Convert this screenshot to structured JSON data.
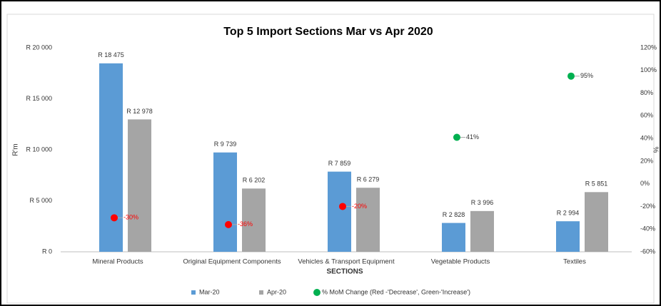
{
  "chart_data": {
    "type": "bar",
    "title": "Top 5 Import Sections Mar vs Apr 2020",
    "x_label": "SECTIONS",
    "y_label": "R'm",
    "y2_label": "%",
    "categories": [
      "Mineral Products",
      "Original Equipment Components",
      "Vehicles & Transport Equipment",
      "Vegetable Products",
      "Textiles"
    ],
    "series": [
      {
        "name": "Mar-20",
        "color": "#5b9bd5",
        "values": [
          18475,
          9739,
          7859,
          2828,
          2994
        ],
        "value_labels": [
          "R 18 475",
          "R 9 739",
          "R 7 859",
          "R 2 828",
          "R 2 994"
        ]
      },
      {
        "name": "Apr-20",
        "color": "#a5a5a5",
        "values": [
          12978,
          6202,
          6279,
          3996,
          5851
        ],
        "value_labels": [
          "R 12 978",
          "R 6 202",
          "R 6 279",
          "R 3 996",
          "R 5 851"
        ]
      },
      {
        "name": "% MoM Change (Red -'Decrease', Green-'Increase')",
        "type": "scatter",
        "axis": "y2",
        "color": "#00b050",
        "colors": [
          "#ff0000",
          "#ff0000",
          "#ff0000",
          "#00b050",
          "#00b050"
        ],
        "values": [
          -30,
          -36,
          -20,
          41,
          95
        ],
        "value_labels": [
          "-30%",
          "-36%",
          "-20%",
          "41%",
          "95%"
        ]
      }
    ],
    "ylim": [
      0,
      20000
    ],
    "yticks": [
      {
        "value": 0,
        "label": "R 0"
      },
      {
        "value": 5000,
        "label": "R 5 000"
      },
      {
        "value": 10000,
        "label": "R 10 000"
      },
      {
        "value": 15000,
        "label": "R 15 000"
      },
      {
        "value": 20000,
        "label": "R 20 000"
      }
    ],
    "y2lim": [
      -60,
      120
    ],
    "y2ticks": [
      {
        "value": -60,
        "label": "-60%"
      },
      {
        "value": -40,
        "label": "-40%"
      },
      {
        "value": -20,
        "label": "-20%"
      },
      {
        "value": 0,
        "label": "0%"
      },
      {
        "value": 20,
        "label": "20%"
      },
      {
        "value": 40,
        "label": "40%"
      },
      {
        "value": 60,
        "label": "60%"
      },
      {
        "value": 80,
        "label": "80%"
      },
      {
        "value": 100,
        "label": "100%"
      },
      {
        "value": 120,
        "label": "120%"
      }
    ],
    "legend": "bottom"
  }
}
